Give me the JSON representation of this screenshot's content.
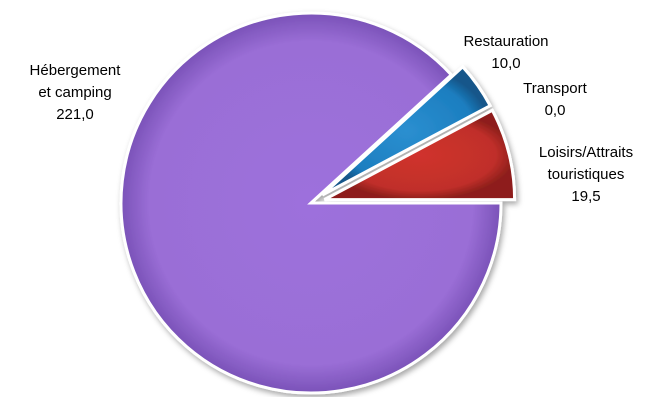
{
  "chart_data": {
    "type": "pie",
    "slices": [
      {
        "label_lines": [
          "Loisirs/Attraits",
          "touristiques"
        ],
        "value": 19.5,
        "value_text": "19,5",
        "color": "#c0302c"
      },
      {
        "label_lines": [
          "Transport"
        ],
        "value": 0.0,
        "value_text": "0,0",
        "color": "#5b9bd5"
      },
      {
        "label_lines": [
          "Restauration"
        ],
        "value": 10.0,
        "value_text": "10,0",
        "color": "#1f77b4"
      },
      {
        "label_lines": [
          "Hébergement",
          "et camping"
        ],
        "value": 221.0,
        "value_text": "221,0",
        "color": "#9b6fd6"
      }
    ],
    "exploded": true,
    "legend": "none"
  }
}
